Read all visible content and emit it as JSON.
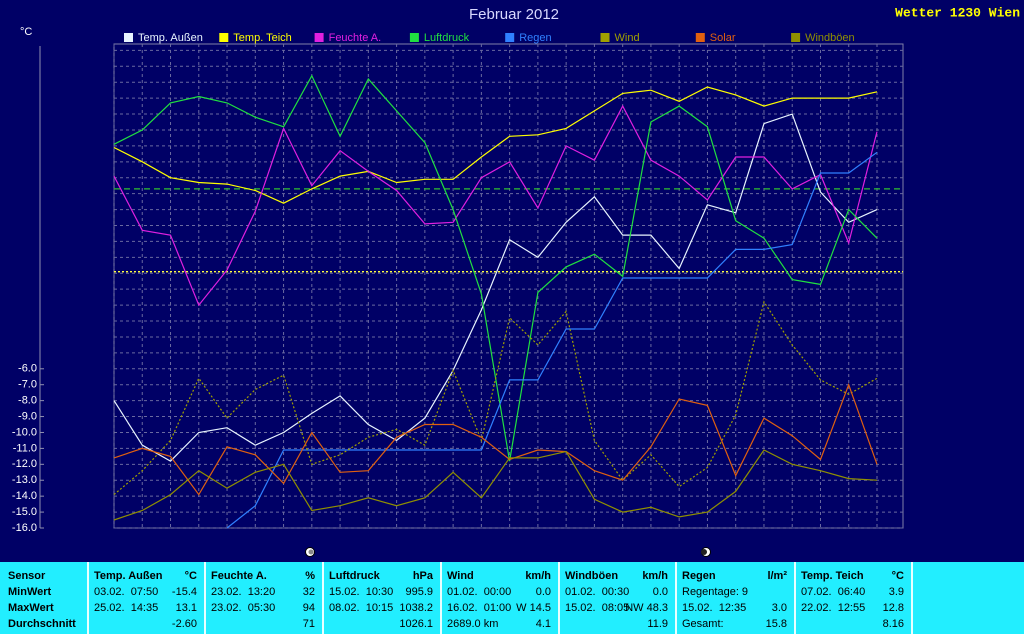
{
  "header": {
    "app_title": "Wetter 1230 Wien"
  },
  "chart_data": {
    "type": "line",
    "title": "Februar 2012",
    "y_unit": "°C",
    "x": [
      1,
      2,
      3,
      4,
      5,
      6,
      7,
      8,
      9,
      10,
      11,
      12,
      13,
      14,
      15,
      16,
      17,
      18,
      19,
      20,
      21,
      22,
      23,
      24,
      25,
      26,
      27,
      28
    ],
    "xlim": [
      1,
      28.92
    ],
    "ylim": [
      -16,
      14.4
    ],
    "yticks": [
      {
        "value": -16,
        "label": "-16.0"
      },
      {
        "value": -15,
        "label": "-15.0"
      },
      {
        "value": -14,
        "label": "-14.0"
      },
      {
        "value": -13,
        "label": "-13.0"
      },
      {
        "value": -12,
        "label": "-12.0"
      },
      {
        "value": -11,
        "label": "-11.0"
      },
      {
        "value": -10,
        "label": "-10.0"
      },
      {
        "value": -9,
        "label": "-9.0"
      },
      {
        "value": -8,
        "label": "-8.0"
      },
      {
        "value": -7,
        "label": "-7.0"
      },
      {
        "value": -6,
        "label": "-6.0"
      },
      {
        "value": -5,
        "label": null
      },
      {
        "value": -4,
        "label": null
      },
      {
        "value": -3,
        "label": null
      },
      {
        "value": -2,
        "label": null
      },
      {
        "value": -1,
        "label": null
      },
      {
        "value": 0,
        "label": null
      },
      {
        "value": 1,
        "label": null
      },
      {
        "value": 2,
        "label": null
      },
      {
        "value": 3,
        "label": null
      },
      {
        "value": 4,
        "label": null
      },
      {
        "value": 5,
        "label": null
      },
      {
        "value": 6,
        "label": null
      },
      {
        "value": 7,
        "label": null
      },
      {
        "value": 8,
        "label": null
      },
      {
        "value": 9,
        "label": null
      },
      {
        "value": 10,
        "label": null
      },
      {
        "value": 11,
        "label": null
      },
      {
        "value": 12,
        "label": null
      },
      {
        "value": 13,
        "label": null
      },
      {
        "value": 14,
        "label": null
      }
    ],
    "grid": true,
    "series": [
      {
        "name": "Temp. Außen",
        "color": "#e8f4ff",
        "style": "solid",
        "values": [
          -8.0,
          -10.8,
          -11.8,
          -10.0,
          -9.7,
          -10.8,
          -10.0,
          -8.8,
          -7.7,
          -9.5,
          -10.5,
          -9.1,
          -6.1,
          -2.3,
          2.1,
          1.0,
          3.2,
          4.8,
          2.4,
          2.4,
          0.3,
          4.3,
          3.8,
          9.4,
          10.0,
          5.1,
          3.2,
          4.0
        ]
      },
      {
        "name": "Temp. Teich",
        "color": "#ffff00",
        "style": "solid",
        "values": [
          7.9,
          7.0,
          6.0,
          5.7,
          5.6,
          5.2,
          4.4,
          5.3,
          6.1,
          6.4,
          5.7,
          5.9,
          5.9,
          7.3,
          8.6,
          8.7,
          9.1,
          10.2,
          11.3,
          11.5,
          10.8,
          11.7,
          11.2,
          10.5,
          11.0,
          11.0,
          11.0,
          11.4
        ]
      },
      {
        "name": "Feuchte A.",
        "color": "#e020e0",
        "style": "solid",
        "values": [
          6.1,
          2.7,
          2.4,
          -2.0,
          0.2,
          3.9,
          9.1,
          5.5,
          7.7,
          6.4,
          5.2,
          3.1,
          3.2,
          6.0,
          7.0,
          4.1,
          8.0,
          7.1,
          10.5,
          7.1,
          6.1,
          4.6,
          7.3,
          7.3,
          5.3,
          6.2,
          1.9,
          8.9
        ]
      },
      {
        "name": "Luftdruck",
        "color": "#20e040",
        "style": "solid",
        "values": [
          8.1,
          9.0,
          10.7,
          11.1,
          10.7,
          9.8,
          9.2,
          12.4,
          8.6,
          12.2,
          10.2,
          8.2,
          4.0,
          -1.3,
          -11.8,
          -1.2,
          0.4,
          1.2,
          -0.2,
          9.5,
          10.5,
          9.2,
          3.3,
          2.2,
          -0.4,
          -0.7,
          4.0,
          2.2
        ]
      },
      {
        "name": "Regen",
        "color": "#3080ff",
        "style": "solid",
        "values": [
          null,
          null,
          null,
          null,
          -16.0,
          -14.6,
          -11.1,
          -11.1,
          -11.1,
          -11.1,
          -11.1,
          -11.1,
          -11.1,
          -11.1,
          -6.7,
          -6.7,
          -3.5,
          -3.5,
          -0.3,
          -0.3,
          -0.3,
          -0.3,
          1.5,
          1.5,
          1.8,
          6.3,
          6.3,
          7.6
        ]
      },
      {
        "name": "Wind",
        "color": "#a0a000",
        "style": "dotted",
        "values": [
          -13.9,
          -12.4,
          -10.5,
          -6.6,
          -9.1,
          -7.3,
          -6.4,
          -12.0,
          -11.4,
          -10.3,
          -9.8,
          -10.8,
          -6.1,
          -10.5,
          -2.8,
          -4.5,
          -2.4,
          -10.5,
          -13.0,
          -11.4,
          -13.4,
          -12.2,
          -8.9,
          -1.8,
          -4.5,
          -6.7,
          -7.6,
          -6.6
        ]
      },
      {
        "name": "Solar",
        "color": "#e06010",
        "style": "solid",
        "values": [
          -11.6,
          -11.0,
          -11.5,
          -13.9,
          -10.9,
          -11.4,
          -13.2,
          -10.0,
          -12.5,
          -12.4,
          -10.3,
          -9.5,
          -9.5,
          -10.3,
          -11.7,
          -11.1,
          -11.2,
          -12.4,
          -13.0,
          -10.9,
          -7.9,
          -8.3,
          -12.7,
          -9.1,
          -10.2,
          -11.7,
          -7.0,
          -12.0
        ]
      },
      {
        "name": "Windböen",
        "color": "#909000",
        "style": "solid",
        "values": [
          -15.5,
          -14.9,
          -13.9,
          -12.4,
          -13.5,
          -12.5,
          -12.0,
          -14.9,
          -14.6,
          -14.1,
          -14.6,
          -14.1,
          -12.5,
          -14.1,
          -11.6,
          -11.6,
          -11.2,
          -14.2,
          -15.0,
          -14.7,
          -15.3,
          -15.0,
          -13.7,
          -11.1,
          -12.0,
          -12.4,
          -12.9,
          -13.0
        ]
      }
    ],
    "reference_lines": [
      {
        "value": 5.3,
        "color": "#30c030",
        "style": "dashed"
      },
      {
        "value": 0.1,
        "color": "#ffff40",
        "style": "dotted"
      }
    ]
  },
  "table": {
    "row_labels": [
      "Sensor",
      "MinWert",
      "MaxWert",
      "Durchschnitt"
    ],
    "columns": [
      {
        "title": "Temp. Außen",
        "unit": "°C",
        "rows": [
          {
            "left": "03.02.  07:50",
            "right": "-15.4"
          },
          {
            "left": "25.02.  14:35",
            "right": "13.1"
          },
          {
            "right": "-2.60"
          }
        ]
      },
      {
        "title": "Feuchte A.",
        "unit": "%",
        "rows": [
          {
            "left": "23.02.  13:20",
            "right": "32"
          },
          {
            "left": "23.02.  05:30",
            "right": "94"
          },
          {
            "right": "71"
          }
        ]
      },
      {
        "title": "Luftdruck",
        "unit": "hPa",
        "rows": [
          {
            "left": "15.02.  10:30",
            "right": "995.9"
          },
          {
            "left": "08.02.  10:15",
            "right": "1038.2"
          },
          {
            "right": "1026.1"
          }
        ]
      },
      {
        "title": "Wind",
        "unit": "km/h",
        "rows": [
          {
            "left": "01.02.  00:00",
            "right": "0.0"
          },
          {
            "left": "16.02.  01:00",
            "right": "W 14.5"
          },
          {
            "left": "2689.0 km",
            "right": "4.1"
          }
        ]
      },
      {
        "title": "Windböen",
        "unit": "km/h",
        "rows": [
          {
            "left": "01.02.  00:30",
            "right": "0.0"
          },
          {
            "left": "15.02.  08:05",
            "right": "NW 48.3"
          },
          {
            "right": "11.9"
          }
        ]
      },
      {
        "title": "Regen",
        "unit": "l/m²",
        "rows": [
          {
            "left": "Regentage: 9"
          },
          {
            "left": "15.02.  12:35",
            "right": "3.0"
          },
          {
            "left": "Gesamt:",
            "right": "15.8"
          }
        ]
      },
      {
        "title": "Temp. Teich",
        "unit": "°C",
        "rows": [
          {
            "left": "07.02.  06:40",
            "right": "3.9"
          },
          {
            "left": "22.02.  12:55",
            "right": "12.8"
          },
          {
            "right": "8.16"
          }
        ]
      }
    ]
  }
}
